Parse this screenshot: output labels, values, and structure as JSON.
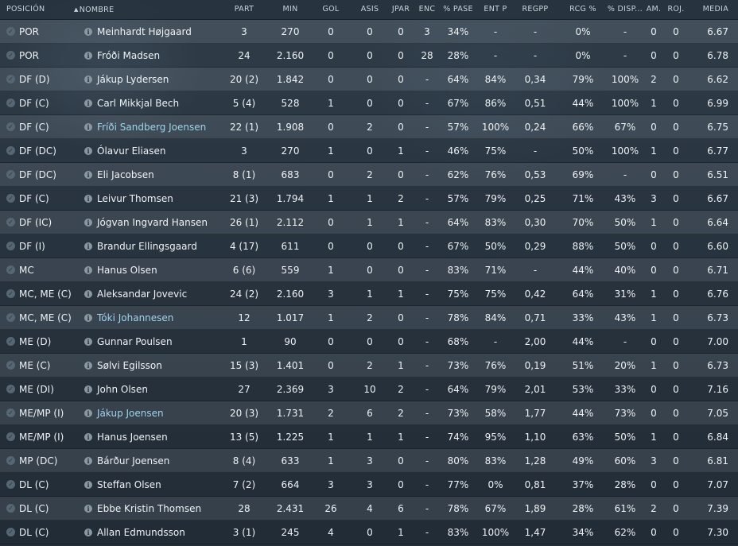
{
  "header": {
    "pos": "POSICIÓN",
    "name": "NOMBRE",
    "sort_icon": "sort-up-icon",
    "part": "PART",
    "min": "MIN",
    "gol": "GOL",
    "asis": "ASIS",
    "jpar": "JPAR",
    "enc": "ENC",
    "pase": "% PASE",
    "entp": "ENT P",
    "regpp": "REGPP",
    "rcg": "RCG %",
    "disp": "% DISP...",
    "am": "AM.",
    "roj": "ROJ.",
    "media": "MEDIA"
  },
  "colors": {
    "link": "#9fd3ec",
    "text": "#eef2f4",
    "header_text": "#c9d3da"
  },
  "rows": [
    {
      "pos": "POR",
      "name": "Meinhardt Højgaard",
      "link": false,
      "part": "3",
      "min": "270",
      "gol": "0",
      "asis": "0",
      "jpar": "0",
      "enc": "3",
      "pase": "34%",
      "entp": "-",
      "regpp": "-",
      "rcg": "0%",
      "disp": "-",
      "am": "0",
      "roj": "0",
      "media": "6.67"
    },
    {
      "pos": "POR",
      "name": "Fróði Madsen",
      "link": false,
      "part": "24",
      "min": "2.160",
      "gol": "0",
      "asis": "0",
      "jpar": "0",
      "enc": "28",
      "pase": "28%",
      "entp": "-",
      "regpp": "-",
      "rcg": "0%",
      "disp": "-",
      "am": "0",
      "roj": "0",
      "media": "6.78"
    },
    {
      "pos": "DF (D)",
      "name": "Jákup Lydersen",
      "link": false,
      "part": "20 (2)",
      "min": "1.842",
      "gol": "0",
      "asis": "0",
      "jpar": "0",
      "enc": "-",
      "pase": "64%",
      "entp": "84%",
      "regpp": "0,34",
      "rcg": "79%",
      "disp": "100%",
      "am": "2",
      "roj": "0",
      "media": "6.62"
    },
    {
      "pos": "DF (C)",
      "name": "Carl Mikkjal Bech",
      "link": false,
      "part": "5 (4)",
      "min": "528",
      "gol": "1",
      "asis": "0",
      "jpar": "0",
      "enc": "-",
      "pase": "67%",
      "entp": "86%",
      "regpp": "0,51",
      "rcg": "44%",
      "disp": "100%",
      "am": "1",
      "roj": "0",
      "media": "6.99"
    },
    {
      "pos": "DF (C)",
      "name": "Fríði Sandberg Joensen",
      "link": true,
      "part": "22 (1)",
      "min": "1.908",
      "gol": "0",
      "asis": "2",
      "jpar": "0",
      "enc": "-",
      "pase": "57%",
      "entp": "100%",
      "regpp": "0,24",
      "rcg": "66%",
      "disp": "67%",
      "am": "0",
      "roj": "0",
      "media": "6.75"
    },
    {
      "pos": "DF (DC)",
      "name": "Ólavur Eliasen",
      "link": false,
      "part": "3",
      "min": "270",
      "gol": "1",
      "asis": "0",
      "jpar": "1",
      "enc": "-",
      "pase": "46%",
      "entp": "75%",
      "regpp": "-",
      "rcg": "50%",
      "disp": "100%",
      "am": "1",
      "roj": "0",
      "media": "6.77"
    },
    {
      "pos": "DF (DC)",
      "name": "Eli Jacobsen",
      "link": false,
      "part": "8 (1)",
      "min": "683",
      "gol": "0",
      "asis": "2",
      "jpar": "0",
      "enc": "-",
      "pase": "62%",
      "entp": "76%",
      "regpp": "0,53",
      "rcg": "69%",
      "disp": "-",
      "am": "0",
      "roj": "0",
      "media": "6.51"
    },
    {
      "pos": "DF (C)",
      "name": "Leivur Thomsen",
      "link": false,
      "part": "21 (3)",
      "min": "1.794",
      "gol": "1",
      "asis": "1",
      "jpar": "2",
      "enc": "-",
      "pase": "57%",
      "entp": "79%",
      "regpp": "0,25",
      "rcg": "71%",
      "disp": "43%",
      "am": "3",
      "roj": "0",
      "media": "6.67"
    },
    {
      "pos": "DF (IC)",
      "name": "Jógvan Ingvard Hansen",
      "link": false,
      "part": "26 (1)",
      "min": "2.112",
      "gol": "0",
      "asis": "1",
      "jpar": "1",
      "enc": "-",
      "pase": "64%",
      "entp": "83%",
      "regpp": "0,30",
      "rcg": "70%",
      "disp": "50%",
      "am": "1",
      "roj": "0",
      "media": "6.64"
    },
    {
      "pos": "DF (I)",
      "name": "Brandur Ellingsgaard",
      "link": false,
      "part": "4 (17)",
      "min": "611",
      "gol": "0",
      "asis": "0",
      "jpar": "0",
      "enc": "-",
      "pase": "67%",
      "entp": "50%",
      "regpp": "0,29",
      "rcg": "88%",
      "disp": "50%",
      "am": "0",
      "roj": "0",
      "media": "6.60"
    },
    {
      "pos": "MC",
      "name": "Hanus Olsen",
      "link": false,
      "part": "6 (6)",
      "min": "559",
      "gol": "1",
      "asis": "0",
      "jpar": "0",
      "enc": "-",
      "pase": "83%",
      "entp": "71%",
      "regpp": "-",
      "rcg": "44%",
      "disp": "40%",
      "am": "0",
      "roj": "0",
      "media": "6.71"
    },
    {
      "pos": "MC, ME (C)",
      "name": "Aleksandar Jovevic",
      "link": false,
      "part": "24 (2)",
      "min": "2.160",
      "gol": "3",
      "asis": "1",
      "jpar": "1",
      "enc": "-",
      "pase": "75%",
      "entp": "75%",
      "regpp": "0,42",
      "rcg": "64%",
      "disp": "31%",
      "am": "1",
      "roj": "0",
      "media": "6.76"
    },
    {
      "pos": "MC, ME (C)",
      "name": "Tóki Johannesen",
      "link": true,
      "part": "12",
      "min": "1.017",
      "gol": "1",
      "asis": "2",
      "jpar": "0",
      "enc": "-",
      "pase": "78%",
      "entp": "84%",
      "regpp": "0,71",
      "rcg": "33%",
      "disp": "43%",
      "am": "1",
      "roj": "0",
      "media": "6.73"
    },
    {
      "pos": "ME (D)",
      "name": "Gunnar Poulsen",
      "link": false,
      "part": "1",
      "min": "90",
      "gol": "0",
      "asis": "0",
      "jpar": "0",
      "enc": "-",
      "pase": "68%",
      "entp": "-",
      "regpp": "2,00",
      "rcg": "44%",
      "disp": "-",
      "am": "0",
      "roj": "0",
      "media": "7.00"
    },
    {
      "pos": "ME (C)",
      "name": "Sølvi Egilsson",
      "link": false,
      "part": "15 (3)",
      "min": "1.401",
      "gol": "0",
      "asis": "2",
      "jpar": "1",
      "enc": "-",
      "pase": "73%",
      "entp": "76%",
      "regpp": "0,19",
      "rcg": "51%",
      "disp": "20%",
      "am": "1",
      "roj": "0",
      "media": "6.73"
    },
    {
      "pos": "ME (DI)",
      "name": "John Olsen",
      "link": false,
      "part": "27",
      "min": "2.369",
      "gol": "3",
      "asis": "10",
      "jpar": "2",
      "enc": "-",
      "pase": "64%",
      "entp": "79%",
      "regpp": "2,01",
      "rcg": "53%",
      "disp": "33%",
      "am": "0",
      "roj": "0",
      "media": "7.16"
    },
    {
      "pos": "ME/MP (I)",
      "name": "Jákup Joensen",
      "link": true,
      "part": "20 (3)",
      "min": "1.731",
      "gol": "2",
      "asis": "6",
      "jpar": "2",
      "enc": "-",
      "pase": "73%",
      "entp": "58%",
      "regpp": "1,77",
      "rcg": "44%",
      "disp": "73%",
      "am": "0",
      "roj": "0",
      "media": "7.05"
    },
    {
      "pos": "ME/MP (I)",
      "name": "Hanus Joensen",
      "link": false,
      "part": "13 (5)",
      "min": "1.225",
      "gol": "1",
      "asis": "1",
      "jpar": "1",
      "enc": "-",
      "pase": "74%",
      "entp": "95%",
      "regpp": "1,10",
      "rcg": "63%",
      "disp": "50%",
      "am": "1",
      "roj": "0",
      "media": "6.84"
    },
    {
      "pos": "MP (DC)",
      "name": "Bárður Joensen",
      "link": false,
      "part": "8 (4)",
      "min": "633",
      "gol": "1",
      "asis": "3",
      "jpar": "0",
      "enc": "-",
      "pase": "80%",
      "entp": "83%",
      "regpp": "1,28",
      "rcg": "49%",
      "disp": "60%",
      "am": "3",
      "roj": "0",
      "media": "6.81"
    },
    {
      "pos": "DL (C)",
      "name": "Steffan Olsen",
      "link": false,
      "part": "7 (2)",
      "min": "664",
      "gol": "3",
      "asis": "3",
      "jpar": "0",
      "enc": "-",
      "pase": "77%",
      "entp": "0%",
      "regpp": "0,81",
      "rcg": "37%",
      "disp": "28%",
      "am": "0",
      "roj": "0",
      "media": "7.07"
    },
    {
      "pos": "DL (C)",
      "name": "Ebbe Kristin Thomsen",
      "link": false,
      "part": "28",
      "min": "2.431",
      "gol": "26",
      "asis": "4",
      "jpar": "6",
      "enc": "-",
      "pase": "78%",
      "entp": "67%",
      "regpp": "1,89",
      "rcg": "28%",
      "disp": "61%",
      "am": "2",
      "roj": "0",
      "media": "7.39"
    },
    {
      "pos": "DL (C)",
      "name": "Allan Edmundsson",
      "link": false,
      "part": "3 (1)",
      "min": "245",
      "gol": "4",
      "asis": "0",
      "jpar": "1",
      "enc": "-",
      "pase": "83%",
      "entp": "100%",
      "regpp": "1,47",
      "rcg": "34%",
      "disp": "62%",
      "am": "0",
      "roj": "0",
      "media": "7.30"
    }
  ]
}
